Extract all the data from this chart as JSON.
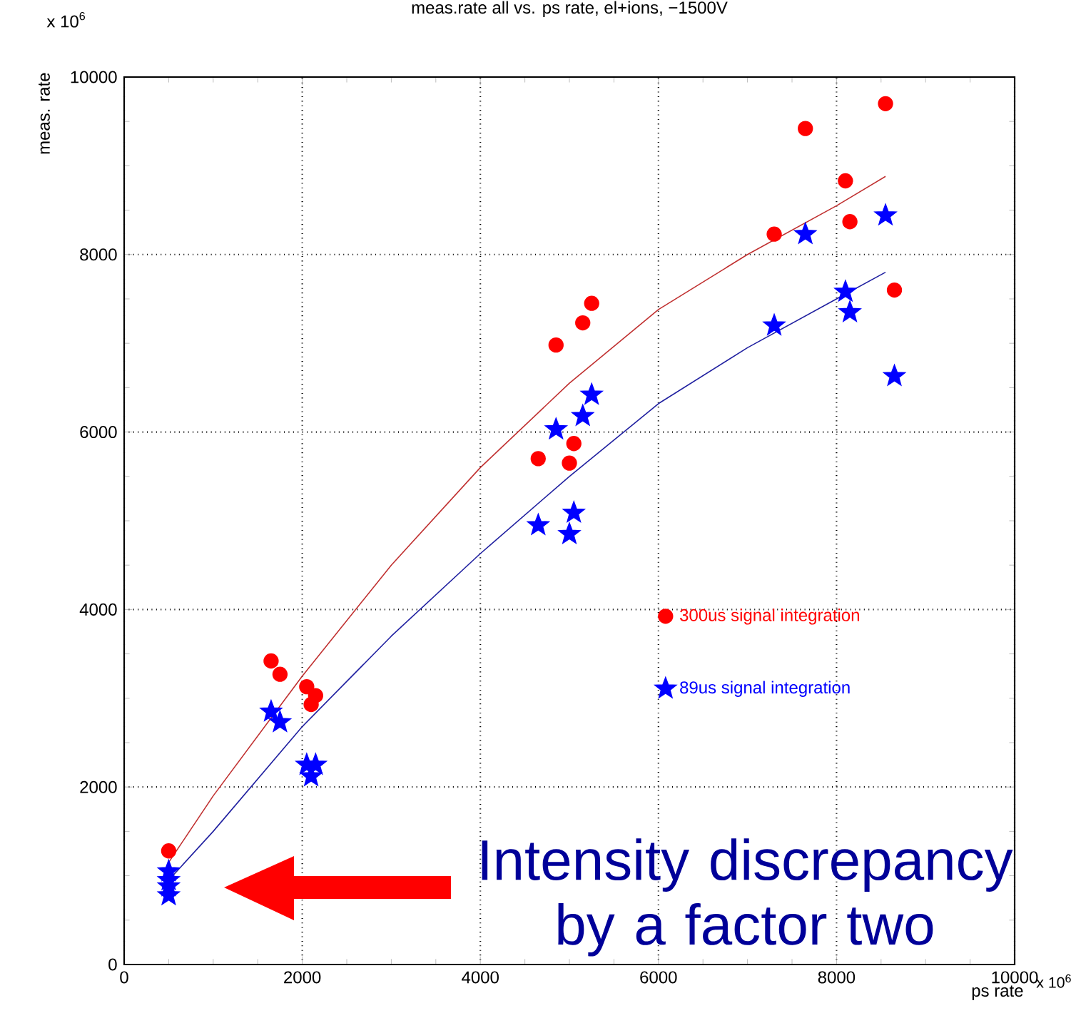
{
  "chart_data": {
    "type": "scatter",
    "title": "meas.rate all vs. ps rate, el+ions, −1500V",
    "xlabel": "ps rate",
    "ylabel": "meas. rate",
    "xlim": [
      0,
      10000
    ],
    "ylim": [
      0,
      10000
    ],
    "xticks": [
      0,
      2000,
      4000,
      6000,
      8000,
      10000
    ],
    "yticks": [
      0,
      2000,
      4000,
      6000,
      8000,
      10000
    ],
    "grid": true,
    "legend": "right",
    "annotations": [
      "x 10$^{6}$",
      "x 10$^{6}$",
      "Intensity discrepancy by a factor two"
    ],
    "series": [
      {
        "name": "300us signal integration",
        "marker": "circle",
        "color": "#ff0000",
        "x": [
          500,
          1650,
          1750,
          2050,
          2100,
          2150,
          4650,
          4850,
          5000,
          5050,
          5150,
          5250,
          7300,
          7650,
          8100,
          8150,
          8550,
          8650
        ],
        "values": [
          1280,
          3420,
          3270,
          3130,
          2930,
          3030,
          5700,
          6980,
          5650,
          5870,
          7230,
          7450,
          8230,
          9420,
          8830,
          8370,
          9700,
          7600
        ]
      },
      {
        "name": "89us signal integration",
        "marker": "star",
        "color": "#0000ff",
        "x": [
          500,
          500,
          500,
          500,
          1650,
          1750,
          2050,
          2100,
          2150,
          4650,
          4850,
          5000,
          5050,
          5150,
          5250,
          7300,
          7650,
          8100,
          8150,
          8550,
          8650
        ],
        "values": [
          1050,
          950,
          880,
          780,
          2850,
          2730,
          2250,
          2120,
          2250,
          4950,
          6030,
          4850,
          5090,
          6180,
          6420,
          7200,
          8230,
          7580,
          7350,
          8440,
          6630
        ]
      },
      {
        "type": "line",
        "color": "#c03030",
        "x": [
          500,
          1000,
          2000,
          3000,
          4000,
          5000,
          6000,
          7000,
          8000,
          8550
        ],
        "values": [
          1150,
          1900,
          3250,
          4500,
          5600,
          6550,
          7380,
          8000,
          8550,
          8880
        ]
      },
      {
        "type": "line",
        "color": "#2020a0",
        "x": [
          500,
          1000,
          2000,
          3000,
          4000,
          5000,
          6000,
          7000,
          8000,
          8550
        ],
        "values": [
          950,
          1500,
          2680,
          3700,
          4630,
          5500,
          6320,
          6950,
          7500,
          7800
        ]
      }
    ]
  }
}
